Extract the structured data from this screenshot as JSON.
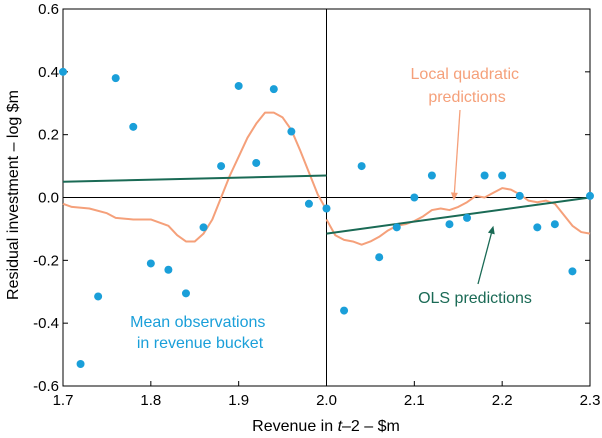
{
  "chart_data": {
    "type": "scatter",
    "xlabel_prefix": "Revenue in ",
    "xlabel_italic": "t",
    "xlabel_suffix": "–2 – $m",
    "ylabel": "Residual investment – log $m",
    "xlim": [
      1.7,
      2.3
    ],
    "ylim": [
      -0.6,
      0.6
    ],
    "x_ticks": [
      "1.7",
      "1.8",
      "1.9",
      "2.0",
      "2.1",
      "2.2",
      "2.3"
    ],
    "y_ticks": [
      "0.6",
      "0.4",
      "0.2",
      "0.0",
      "-0.2",
      "-0.4",
      "-0.6"
    ],
    "cutoff": 2.0,
    "colors": {
      "points": "#1a9fd9",
      "local": "#f5a07a",
      "ols": "#1a6a55",
      "axis": "#000000"
    },
    "series": [
      {
        "name": "Mean observations in revenue bucket",
        "kind": "scatter",
        "points": [
          [
            1.7,
            0.4
          ],
          [
            1.72,
            -0.53
          ],
          [
            1.74,
            -0.315
          ],
          [
            1.76,
            0.38
          ],
          [
            1.78,
            0.225
          ],
          [
            1.8,
            -0.21
          ],
          [
            1.82,
            -0.23
          ],
          [
            1.84,
            -0.305
          ],
          [
            1.86,
            -0.095
          ],
          [
            1.88,
            0.1
          ],
          [
            1.9,
            0.355
          ],
          [
            1.92,
            0.11
          ],
          [
            1.94,
            0.345
          ],
          [
            1.96,
            0.21
          ],
          [
            1.98,
            -0.02
          ],
          [
            2.0,
            -0.035
          ],
          [
            2.02,
            -0.36
          ],
          [
            2.04,
            0.1
          ],
          [
            2.06,
            -0.19
          ],
          [
            2.08,
            -0.095
          ],
          [
            2.1,
            0.0
          ],
          [
            2.12,
            0.07
          ],
          [
            2.14,
            -0.085
          ],
          [
            2.16,
            -0.065
          ],
          [
            2.18,
            0.07
          ],
          [
            2.2,
            0.07
          ],
          [
            2.22,
            0.005
          ],
          [
            2.24,
            -0.095
          ],
          [
            2.26,
            -0.085
          ],
          [
            2.28,
            -0.235
          ],
          [
            2.3,
            0.005
          ]
        ]
      },
      {
        "name": "Local quadratic predictions",
        "kind": "line",
        "segments": [
          [
            [
              1.7,
              -0.02
            ],
            [
              1.71,
              -0.03
            ],
            [
              1.73,
              -0.035
            ],
            [
              1.75,
              -0.05
            ],
            [
              1.76,
              -0.065
            ],
            [
              1.78,
              -0.07
            ],
            [
              1.8,
              -0.07
            ],
            [
              1.82,
              -0.09
            ],
            [
              1.83,
              -0.12
            ],
            [
              1.84,
              -0.14
            ],
            [
              1.85,
              -0.14
            ],
            [
              1.86,
              -0.115
            ],
            [
              1.87,
              -0.07
            ],
            [
              1.88,
              0.0
            ],
            [
              1.89,
              0.07
            ],
            [
              1.9,
              0.13
            ],
            [
              1.91,
              0.19
            ],
            [
              1.92,
              0.235
            ],
            [
              1.93,
              0.27
            ],
            [
              1.94,
              0.27
            ],
            [
              1.95,
              0.255
            ],
            [
              1.96,
              0.215
            ],
            [
              1.97,
              0.15
            ],
            [
              1.98,
              0.08
            ],
            [
              1.99,
              0.01
            ],
            [
              2.0,
              -0.04
            ]
          ],
          [
            [
              2.0,
              -0.07
            ],
            [
              2.01,
              -0.12
            ],
            [
              2.02,
              -0.135
            ],
            [
              2.03,
              -0.14
            ],
            [
              2.04,
              -0.15
            ],
            [
              2.05,
              -0.14
            ],
            [
              2.06,
              -0.125
            ],
            [
              2.07,
              -0.105
            ],
            [
              2.08,
              -0.09
            ],
            [
              2.09,
              -0.085
            ],
            [
              2.1,
              -0.075
            ],
            [
              2.11,
              -0.06
            ],
            [
              2.12,
              -0.04
            ],
            [
              2.13,
              -0.035
            ],
            [
              2.14,
              -0.04
            ],
            [
              2.15,
              -0.03
            ],
            [
              2.16,
              -0.015
            ],
            [
              2.17,
              0.005
            ],
            [
              2.18,
              0.0
            ],
            [
              2.19,
              0.015
            ],
            [
              2.2,
              0.03
            ],
            [
              2.21,
              0.025
            ],
            [
              2.22,
              0.01
            ],
            [
              2.23,
              -0.01
            ],
            [
              2.24,
              -0.015
            ],
            [
              2.25,
              -0.01
            ],
            [
              2.26,
              -0.02
            ],
            [
              2.27,
              -0.055
            ],
            [
              2.28,
              -0.09
            ],
            [
              2.29,
              -0.11
            ],
            [
              2.3,
              -0.115
            ]
          ]
        ]
      },
      {
        "name": "OLS predictions",
        "kind": "line",
        "segments": [
          [
            [
              1.7,
              0.05
            ],
            [
              2.0,
              0.07
            ]
          ],
          [
            [
              2.0,
              -0.115
            ],
            [
              2.3,
              0.0
            ]
          ]
        ]
      }
    ],
    "annotations": [
      {
        "id": "local",
        "lines": [
          "Local quadratic",
          "predictions"
        ],
        "arrow_to": [
          2.145,
          -0.01
        ]
      },
      {
        "id": "ols",
        "lines": [
          "OLS predictions"
        ],
        "arrow_to": [
          2.19,
          -0.09
        ]
      },
      {
        "id": "mean",
        "lines": [
          "Mean observations",
          "in revenue bucket"
        ]
      }
    ]
  }
}
